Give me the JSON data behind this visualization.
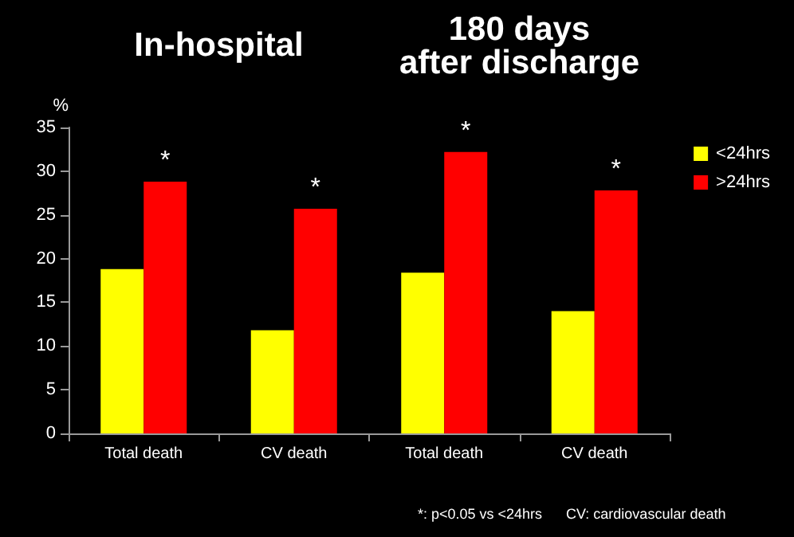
{
  "chart_data": {
    "type": "bar",
    "ylabel": "%",
    "categories": [
      "Total death",
      "CV death",
      "Total death",
      "CV death"
    ],
    "series": [
      {
        "name": "<24hrs",
        "color": "#ffff00",
        "values": [
          18.8,
          11.8,
          18.4,
          14.0
        ]
      },
      {
        "name": ">24hrs",
        "color": "#ff0000",
        "values": [
          28.8,
          25.7,
          32.2,
          27.8
        ],
        "value_labels": [
          "*",
          "*",
          "*",
          "*"
        ]
      }
    ],
    "ylim": [
      0,
      35
    ],
    "yticks": [
      0,
      5,
      10,
      15,
      20,
      25,
      30,
      35
    ],
    "grid": false,
    "legend": "top right",
    "annotations": [
      "In-hospital",
      "180 days\nafter discharge",
      "*: p<0.05 vs <24hrs",
      "CV: cardiovascular death"
    ]
  }
}
